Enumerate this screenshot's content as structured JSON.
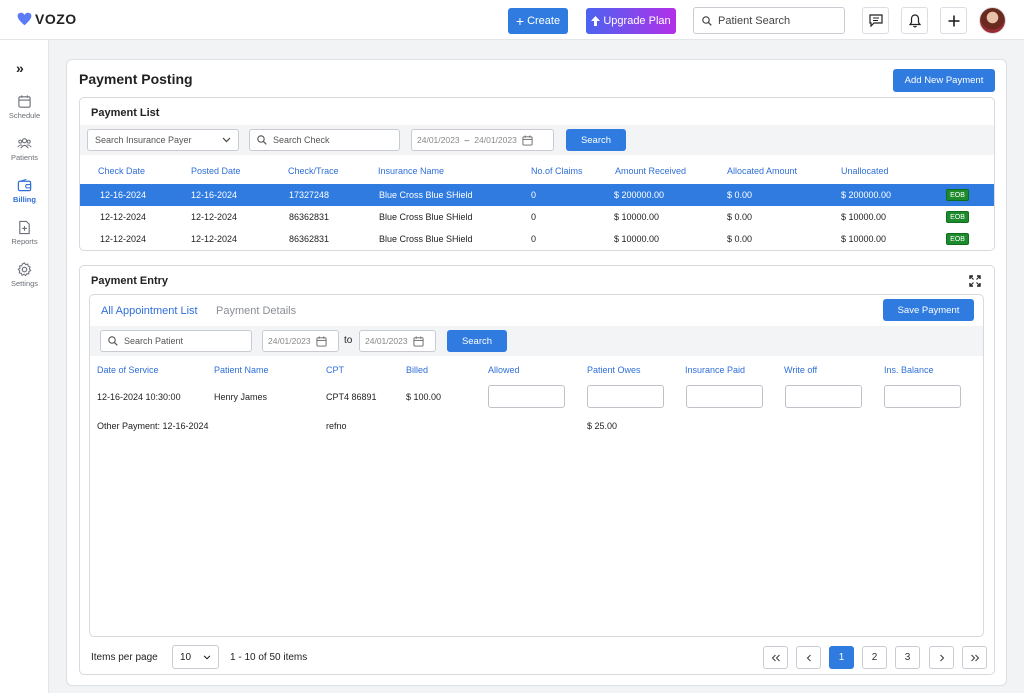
{
  "brand": {
    "name": "VOZO",
    "color": "#5b7cf5"
  },
  "header": {
    "create_label": "Create",
    "upgrade_label": "Upgrade Plan",
    "search_placeholder": "Patient Search",
    "icons": [
      "chat-icon",
      "bell-icon",
      "plus-icon",
      "avatar"
    ]
  },
  "sidebar": {
    "items": [
      {
        "label": "Schedule",
        "icon": "calendar-icon"
      },
      {
        "label": "Patients",
        "icon": "patients-icon"
      },
      {
        "label": "Billing",
        "icon": "wallet-icon",
        "active": true
      },
      {
        "label": "Reports",
        "icon": "report-icon"
      },
      {
        "label": "Settings",
        "icon": "gear-icon"
      }
    ]
  },
  "page": {
    "title": "Payment Posting",
    "add_button": "Add New Payment"
  },
  "payment_list": {
    "title": "Payment List",
    "payer_placeholder": "Search Insurance Payer",
    "check_placeholder": "Search Check",
    "date_from": "24/01/2023",
    "date_to": "24/01/2023",
    "search_label": "Search",
    "columns": [
      "Check Date",
      "Posted Date",
      "Check/Trace",
      "Insurance Name",
      "No.of Claims",
      "Amount Received",
      "Allocated Amount",
      "Unallocated"
    ],
    "rows": [
      {
        "check_date": "12-16-2024",
        "posted_date": "12-16-2024",
        "trace": "17327248",
        "insurance": "Blue Cross Blue SHield",
        "claims": "0",
        "received": "$ 200000.00",
        "allocated": "$ 0.00",
        "unallocated": "$ 200000.00",
        "badge": "EOB"
      },
      {
        "check_date": "12-12-2024",
        "posted_date": "12-12-2024",
        "trace": "86362831",
        "insurance": "Blue Cross Blue SHield",
        "claims": "0",
        "received": "$ 10000.00",
        "allocated": "$ 0.00",
        "unallocated": "$ 10000.00",
        "badge": "EOB"
      },
      {
        "check_date": "12-12-2024",
        "posted_date": "12-12-2024",
        "trace": "86362831",
        "insurance": "Blue Cross Blue SHield",
        "claims": "0",
        "received": "$ 10000.00",
        "allocated": "$ 0.00",
        "unallocated": "$ 10000.00",
        "badge": "EOB"
      }
    ]
  },
  "payment_entry": {
    "title": "Payment Entry",
    "tabs": [
      "All Appointment List",
      "Payment Details"
    ],
    "save_label": "Save Payment",
    "patient_placeholder": "Search Patient",
    "date_from": "24/01/2023",
    "to_label": "to",
    "date_to": "24/01/2023",
    "search_label": "Search",
    "columns": [
      "Date of Service",
      "Patient Name",
      "CPT",
      "Billed",
      "Allowed",
      "Patient Owes",
      "Insurance Paid",
      "Write off",
      "Ins. Balance"
    ],
    "row": {
      "dos": "12-16-2024 10:30:00",
      "patient": "Henry James",
      "cpt": "CPT4 86891",
      "billed": "$ 100.00"
    },
    "other": {
      "label": "Other Payment: 12-16-2024",
      "ref": "refno",
      "amount": "$ 25.00"
    }
  },
  "pagination": {
    "items_per_page_label": "Items per page",
    "page_size": "10",
    "range_text": "1 - 10 of 50 items",
    "pages": [
      "1",
      "2",
      "3"
    ],
    "current_page": "1"
  }
}
